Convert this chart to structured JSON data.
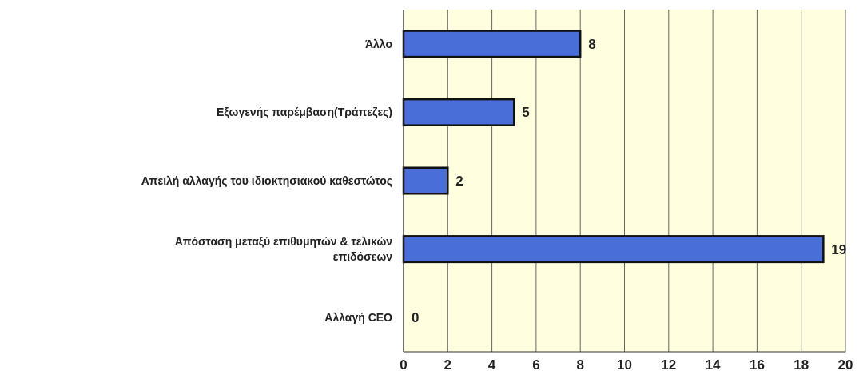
{
  "chart_data": {
    "type": "bar",
    "orientation": "horizontal",
    "categories": [
      "Άλλο",
      "Εξωγενής παρέμβαση(Τράπεζες)",
      "Απειλή αλλαγής του ιδιοκτησιακού καθεστώτος",
      "Απόσταση μεταξύ επιθυμητών & τελικών επιδόσεων",
      "Αλλαγή CEO"
    ],
    "values": [
      8,
      5,
      2,
      19,
      0
    ],
    "color": "#4a6ed8",
    "xlim": [
      0,
      20
    ],
    "xticks": [
      0,
      2,
      4,
      6,
      8,
      10,
      12,
      14,
      16,
      18,
      20
    ],
    "grid": "x",
    "data_labels": true
  }
}
